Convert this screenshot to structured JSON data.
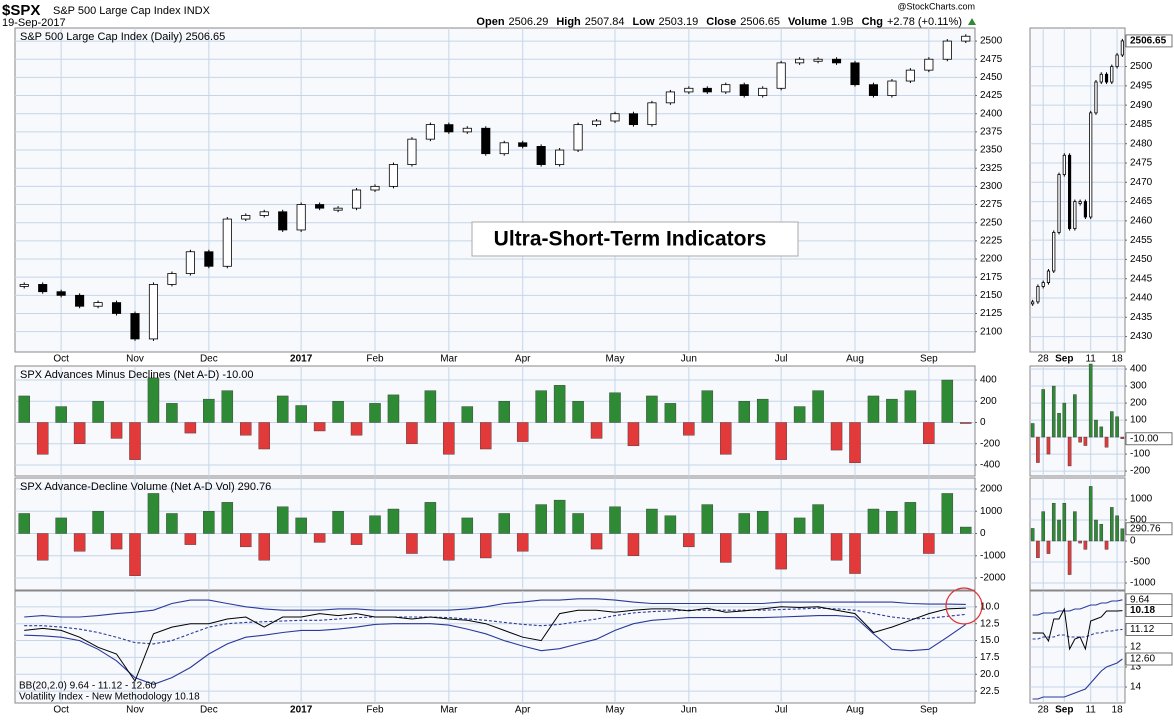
{
  "header": {
    "symbol": "$SPX",
    "name": "S&P 500 Large Cap Index INDX",
    "date": "19-Sep-2017",
    "watermark": "@StockCharts.com",
    "quote": [
      {
        "label": "Open",
        "value": "2506.29"
      },
      {
        "label": "High",
        "value": "2507.84"
      },
      {
        "label": "Low",
        "value": "2503.19"
      },
      {
        "label": "Close",
        "value": "2506.65"
      },
      {
        "label": "Volume",
        "value": "1.9B"
      },
      {
        "label": "Chg",
        "value": "+2.78 (+0.11%)"
      }
    ]
  },
  "chart_data": [
    {
      "type": "price",
      "title": "S&P 500 Large Cap Index (Daily) 2506.65",
      "annotation": "Ultra-Short-Term Indicators",
      "color": "#000000",
      "grid": true,
      "categories": [
        null,
        null,
        "Oct",
        null,
        null,
        null,
        "Nov",
        null,
        null,
        null,
        "Dec",
        null,
        null,
        null,
        null,
        "2017",
        null,
        null,
        null,
        "Feb",
        null,
        null,
        null,
        "Mar",
        null,
        null,
        null,
        "Apr",
        null,
        null,
        null,
        null,
        "May",
        null,
        null,
        null,
        "Jun",
        null,
        null,
        null,
        null,
        "Jul",
        null,
        null,
        null,
        "Aug",
        null,
        null,
        null,
        "Sep",
        null,
        null
      ],
      "values": [
        2165,
        2155,
        2150,
        2135,
        2140,
        2125,
        2090,
        2165,
        2180,
        2210,
        2190,
        2255,
        2260,
        2265,
        2240,
        2275,
        2270,
        2270,
        2295,
        2300,
        2330,
        2365,
        2385,
        2375,
        2380,
        2345,
        2360,
        2355,
        2330,
        2350,
        2385,
        2390,
        2400,
        2385,
        2415,
        2430,
        2435,
        2430,
        2440,
        2425,
        2435,
        2470,
        2475,
        2475,
        2470,
        2440,
        2425,
        2445,
        2460,
        2475,
        2500,
        2506.65
      ],
      "ylim": [
        2072,
        2518
      ],
      "yticks": [
        2100,
        2125,
        2150,
        2175,
        2200,
        2225,
        2250,
        2275,
        2300,
        2325,
        2350,
        2375,
        2400,
        2425,
        2450,
        2475,
        2500
      ]
    },
    {
      "type": "bar",
      "title": "SPX Advances Minus Declines (Net A-D) -10.00",
      "colors": {
        "positive": "#2f8a35",
        "negative": "#e23a3a"
      },
      "grid": true,
      "values": [
        250,
        -300,
        150,
        -200,
        200,
        -150,
        -350,
        420,
        180,
        -100,
        220,
        300,
        -120,
        -250,
        250,
        160,
        -80,
        200,
        -120,
        180,
        260,
        -200,
        300,
        -300,
        150,
        -250,
        200,
        -180,
        300,
        350,
        200,
        -150,
        280,
        -220,
        250,
        180,
        -120,
        300,
        -300,
        200,
        220,
        -350,
        150,
        300,
        -260,
        -380,
        250,
        220,
        300,
        -200,
        400,
        -10
      ],
      "ylim": [
        -504,
        532
      ],
      "yticks": [
        -400,
        -200,
        0,
        200,
        400
      ]
    },
    {
      "type": "bar",
      "title": "SPX Advance-Decline Volume (Net A-D Vol) 290.76",
      "colors": {
        "positive": "#2f8a35",
        "negative": "#e23a3a"
      },
      "grid": true,
      "values": [
        900,
        -1200,
        700,
        -800,
        1000,
        -700,
        -1900,
        1800,
        900,
        -500,
        1000,
        1400,
        -600,
        -1200,
        1200,
        700,
        -400,
        1000,
        -500,
        800,
        1100,
        -900,
        1400,
        -1200,
        700,
        -1100,
        900,
        -800,
        1300,
        1500,
        900,
        -700,
        1200,
        -1000,
        1100,
        800,
        -600,
        1300,
        -1300,
        900,
        1000,
        -1600,
        700,
        1300,
        -1200,
        -1800,
        1100,
        1000,
        1400,
        -900,
        1800,
        290.76
      ],
      "ylim": [
        -2539,
        2494
      ],
      "yticks": [
        -2000,
        -1000,
        0,
        1000,
        2000
      ]
    },
    {
      "type": "line",
      "legend": [
        "BB(20,2.0) 9.64 - 11.12 - 12.60",
        "Volatility Index - New Methodology 10.18"
      ],
      "inverted": true,
      "grid": true,
      "series": [
        {
          "color": "#2a3a9a",
          "style": "solid",
          "values": [
            11.5,
            11.3,
            11.5,
            11.5,
            11.3,
            11,
            10.8,
            10.5,
            9.5,
            9,
            9,
            9.5,
            10,
            10.3,
            10.5,
            10.5,
            10.5,
            10.3,
            10.3,
            10.5,
            10.5,
            10.5,
            10.5,
            10.5,
            10.3,
            10,
            9.5,
            9.3,
            9,
            9,
            8.8,
            8.8,
            9,
            9.3,
            9.5,
            9.5,
            9.5,
            9.5,
            9.5,
            9.5,
            9.5,
            9.3,
            9.3,
            9.3,
            9.3,
            9.3,
            9.3,
            9.3,
            9.5,
            9.6,
            9.6,
            9.64
          ]
        },
        {
          "color": "#2a3a9a",
          "style": "dashed",
          "values": [
            12.8,
            12.8,
            13,
            13.3,
            13.8,
            14.5,
            15.3,
            15.5,
            15,
            14,
            13,
            12.5,
            12.3,
            12.2,
            12.1,
            12,
            12,
            11.8,
            11.6,
            11.5,
            11.5,
            11.5,
            11.5,
            11.6,
            11.8,
            12,
            12.3,
            12.6,
            12.8,
            12.6,
            12.2,
            11.8,
            11.3,
            10.9,
            10.7,
            10.6,
            10.5,
            10.5,
            10.5,
            10.5,
            10.5,
            10.4,
            10.3,
            10.2,
            10.3,
            10.5,
            11,
            11.5,
            11.8,
            11.7,
            11.4,
            11.12
          ]
        },
        {
          "color": "#2a3a9a",
          "style": "solid",
          "values": [
            14.2,
            14.3,
            14.5,
            15,
            16.3,
            18,
            20.5,
            21.5,
            20.5,
            19,
            17,
            15.5,
            14.5,
            14.2,
            13.8,
            13.5,
            13.5,
            13.3,
            13,
            12.6,
            12.5,
            12.5,
            12.5,
            12.7,
            13.3,
            14,
            15,
            15.8,
            16.5,
            16.2,
            15.5,
            14.8,
            13.5,
            12.5,
            12,
            11.8,
            11.6,
            11.6,
            11.6,
            11.6,
            11.6,
            11.5,
            11.4,
            11.3,
            11.3,
            11.5,
            14,
            16.3,
            16.5,
            16.3,
            14.5,
            12.6
          ]
        },
        {
          "color": "#000000",
          "style": "solid",
          "values": [
            13.5,
            13.2,
            13.5,
            14.5,
            16,
            17,
            21,
            14,
            13,
            12.5,
            12.5,
            11.8,
            11.5,
            13,
            11.5,
            11.5,
            11,
            11.3,
            11,
            11.5,
            11.5,
            11.8,
            11.5,
            11.8,
            12,
            12.5,
            13.5,
            14.5,
            15,
            11,
            10.5,
            10.5,
            10.8,
            10.5,
            10.3,
            10.3,
            10.6,
            10.2,
            10.8,
            10.6,
            10.3,
            10,
            10.1,
            10,
            10.5,
            11,
            13.8,
            13,
            12,
            11,
            10.3,
            10.18
          ]
        }
      ],
      "ylim": [
        7.65,
        24.26
      ],
      "yticks": [
        {
          "value": 10,
          "label": "10.0"
        },
        12.5,
        {
          "value": 15,
          "label": "15.0"
        },
        17.5,
        {
          "value": 20,
          "label": "20.0"
        },
        22.5
      ]
    },
    {
      "type": "price",
      "color": "#000000",
      "grid": true,
      "categories": [
        null,
        null,
        "28",
        null,
        null,
        null,
        "Sep",
        null,
        null,
        null,
        null,
        "11",
        null,
        null,
        null,
        null,
        "18",
        null
      ],
      "values": [
        2439,
        2443,
        2444,
        2447,
        2457,
        2472,
        2477,
        2458,
        2465,
        2465,
        2461,
        2488,
        2496,
        2498,
        2496,
        2500,
        2503,
        2506.65
      ],
      "ylim": [
        2426,
        2510
      ],
      "yticks": [
        2430,
        2435,
        2440,
        2445,
        2450,
        2455,
        2460,
        2465,
        2470,
        2475,
        2480,
        2485,
        2490,
        2495,
        2500
      ]
    },
    {
      "type": "bar",
      "colors": {
        "positive": "#2f8a35",
        "negative": "#e23a3a"
      },
      "grid": true,
      "last_label": "-10.00",
      "values": [
        80,
        -150,
        280,
        -100,
        300,
        140,
        200,
        -170,
        250,
        -30,
        -50,
        430,
        100,
        60,
        -60,
        150,
        120,
        -10
      ],
      "ylim": [
        -229,
        418
      ],
      "yticks": [
        -200,
        -100,
        0,
        100,
        200,
        300,
        400
      ]
    },
    {
      "type": "bar",
      "colors": {
        "positive": "#2f8a35",
        "negative": "#e23a3a"
      },
      "grid": true,
      "values": [
        300,
        -400,
        700,
        -300,
        900,
        500,
        900,
        -800,
        700,
        -50,
        -200,
        1300,
        500,
        400,
        -200,
        800,
        600,
        290.76
      ],
      "ylim": [
        -1167,
        1500
      ],
      "yticks": [
        -1000,
        -500,
        0,
        500,
        1000
      ]
    },
    {
      "type": "line",
      "inverted": true,
      "grid": true,
      "series": [
        {
          "color": "#2a3a9a",
          "style": "solid",
          "values": [
            10.4,
            10.4,
            10.3,
            10.3,
            10.3,
            10.2,
            10.2,
            10.2,
            10.1,
            10.1,
            10,
            9.9,
            9.9,
            9.8,
            9.8,
            9.7,
            9.7,
            9.64
          ]
        },
        {
          "color": "#2a3a9a",
          "style": "dashed",
          "last_label": "11.12",
          "values": [
            11.6,
            11.6,
            11.5,
            11.5,
            11.5,
            11.4,
            11.4,
            11.5,
            11.5,
            11.5,
            11.5,
            11.4,
            11.3,
            11.3,
            11.2,
            11.2,
            11.15,
            11.12
          ]
        },
        {
          "color": "#2a3a9a",
          "style": "solid",
          "last_label": "12.60",
          "values": [
            14.6,
            14.6,
            14.5,
            14.5,
            14.5,
            14.5,
            14.5,
            14.4,
            14.3,
            14.2,
            14.1,
            13.8,
            13.5,
            13.2,
            13,
            12.9,
            12.8,
            12.6
          ]
        },
        {
          "color": "#000000",
          "style": "solid",
          "values": [
            11.3,
            11.3,
            11.3,
            11.7,
            10.6,
            10.6,
            10.1,
            12.1,
            11.6,
            11.5,
            12.1,
            10.7,
            10.6,
            10.5,
            10.2,
            10.2,
            10.2,
            10.18
          ]
        }
      ],
      "ylim": [
        9.2,
        14.8
      ],
      "yticks": [
        12,
        13,
        14
      ]
    }
  ]
}
